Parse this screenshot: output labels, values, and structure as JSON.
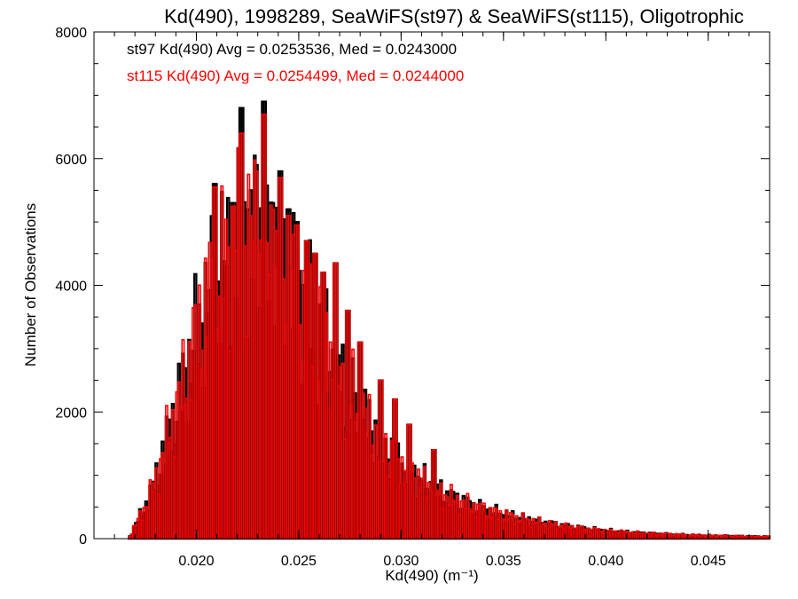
{
  "chart_data": {
    "type": "bar",
    "title": "Kd(490), 1998289, SeaWiFS(st97) & SeaWiFS(st115), Oligotrophic",
    "xlabel": "Kd(490) (m⁻¹)",
    "ylabel": "Number of Observations",
    "xlim": [
      0.015,
      0.048
    ],
    "ylim": [
      0,
      8000
    ],
    "x_ticks": [
      0.02,
      0.025,
      0.03,
      0.035,
      0.04,
      0.045
    ],
    "x_tick_labels": [
      "0.020",
      "0.025",
      "0.030",
      "0.035",
      "0.040",
      "0.045"
    ],
    "y_ticks": [
      0,
      2000,
      4000,
      6000,
      8000
    ],
    "y_tick_labels": [
      "0",
      "2000",
      "4000",
      "6000",
      "8000"
    ],
    "grid": false,
    "colors": {
      "st97": "#000000",
      "st115": "#ff0000"
    },
    "bin_width": 0.0001,
    "bin_range": [
      0.015,
      0.048
    ],
    "annotations": [
      {
        "text": "st97 Kd(490) Avg = 0.0253536, Med = 0.0243000",
        "color": "#000000"
      },
      {
        "text": "st115 Kd(490) Avg = 0.0254499, Med = 0.0244000",
        "color": "#ff0000"
      }
    ],
    "series": [
      {
        "name": "st97",
        "color": "#000000",
        "profile": [
          [
            0.015,
            0
          ],
          [
            0.0167,
            0
          ],
          [
            0.017,
            200
          ],
          [
            0.0175,
            500
          ],
          [
            0.018,
            900
          ],
          [
            0.0185,
            1500
          ],
          [
            0.019,
            2000
          ],
          [
            0.0195,
            2600
          ],
          [
            0.02,
            3200
          ],
          [
            0.0205,
            3700
          ],
          [
            0.021,
            4100
          ],
          [
            0.0215,
            4400
          ],
          [
            0.022,
            4600
          ],
          [
            0.0225,
            4700
          ],
          [
            0.023,
            4650
          ],
          [
            0.0235,
            4500
          ],
          [
            0.024,
            4300
          ],
          [
            0.0245,
            4050
          ],
          [
            0.025,
            3800
          ],
          [
            0.0255,
            3500
          ],
          [
            0.026,
            3200
          ],
          [
            0.0265,
            2900
          ],
          [
            0.027,
            2600
          ],
          [
            0.0275,
            2300
          ],
          [
            0.028,
            2000
          ],
          [
            0.0285,
            1750
          ],
          [
            0.029,
            1500
          ],
          [
            0.0295,
            1300
          ],
          [
            0.03,
            1150
          ],
          [
            0.031,
            900
          ],
          [
            0.032,
            700
          ],
          [
            0.033,
            560
          ],
          [
            0.034,
            450
          ],
          [
            0.035,
            370
          ],
          [
            0.036,
            300
          ],
          [
            0.037,
            240
          ],
          [
            0.038,
            190
          ],
          [
            0.039,
            150
          ],
          [
            0.04,
            120
          ],
          [
            0.042,
            80
          ],
          [
            0.044,
            55
          ],
          [
            0.046,
            40
          ],
          [
            0.048,
            30
          ]
        ],
        "peaks": [
          [
            0.0209,
            5600
          ],
          [
            0.0218,
            5300
          ],
          [
            0.0222,
            6800
          ],
          [
            0.0226,
            5200
          ],
          [
            0.0229,
            5900
          ],
          [
            0.0233,
            6900
          ],
          [
            0.0237,
            5300
          ],
          [
            0.0241,
            5800
          ],
          [
            0.0245,
            5200
          ],
          [
            0.0249,
            5000
          ],
          [
            0.0254,
            4700
          ],
          [
            0.0258,
            4500
          ],
          [
            0.0262,
            4200
          ],
          [
            0.0268,
            4350
          ],
          [
            0.0274,
            3600
          ],
          [
            0.028,
            3100
          ],
          [
            0.029,
            2500
          ],
          [
            0.0297,
            2200
          ],
          [
            0.0304,
            1800
          ],
          [
            0.0316,
            1400
          ]
        ]
      },
      {
        "name": "st115",
        "color": "#ff0000",
        "profile": [
          [
            0.015,
            0
          ],
          [
            0.0167,
            0
          ],
          [
            0.017,
            200
          ],
          [
            0.0175,
            500
          ],
          [
            0.018,
            900
          ],
          [
            0.0185,
            1500
          ],
          [
            0.019,
            2000
          ],
          [
            0.0195,
            2600
          ],
          [
            0.02,
            3200
          ],
          [
            0.0205,
            3700
          ],
          [
            0.021,
            4100
          ],
          [
            0.0215,
            4400
          ],
          [
            0.022,
            4600
          ],
          [
            0.0225,
            4700
          ],
          [
            0.023,
            4650
          ],
          [
            0.0235,
            4500
          ],
          [
            0.024,
            4300
          ],
          [
            0.0245,
            4050
          ],
          [
            0.025,
            3800
          ],
          [
            0.0255,
            3500
          ],
          [
            0.026,
            3200
          ],
          [
            0.0265,
            2900
          ],
          [
            0.027,
            2600
          ],
          [
            0.0275,
            2300
          ],
          [
            0.028,
            2000
          ],
          [
            0.0285,
            1750
          ],
          [
            0.029,
            1500
          ],
          [
            0.0295,
            1300
          ],
          [
            0.03,
            1150
          ],
          [
            0.031,
            900
          ],
          [
            0.032,
            700
          ],
          [
            0.033,
            560
          ],
          [
            0.034,
            450
          ],
          [
            0.035,
            370
          ],
          [
            0.036,
            300
          ],
          [
            0.037,
            240
          ],
          [
            0.038,
            190
          ],
          [
            0.039,
            150
          ],
          [
            0.04,
            120
          ],
          [
            0.042,
            80
          ],
          [
            0.044,
            55
          ],
          [
            0.046,
            40
          ],
          [
            0.048,
            30
          ]
        ],
        "peaks": [
          [
            0.0209,
            5550
          ],
          [
            0.0218,
            5250
          ],
          [
            0.0222,
            6400
          ],
          [
            0.0226,
            5100
          ],
          [
            0.0229,
            5800
          ],
          [
            0.0233,
            6700
          ],
          [
            0.0237,
            5200
          ],
          [
            0.0241,
            5700
          ],
          [
            0.0245,
            5100
          ],
          [
            0.0249,
            4950
          ],
          [
            0.0254,
            4700
          ],
          [
            0.0258,
            4500
          ],
          [
            0.0262,
            4200
          ],
          [
            0.0268,
            4350
          ],
          [
            0.0274,
            3600
          ],
          [
            0.028,
            3100
          ],
          [
            0.029,
            2500
          ],
          [
            0.0297,
            2200
          ],
          [
            0.0304,
            1800
          ],
          [
            0.0316,
            1400
          ]
        ]
      }
    ]
  }
}
